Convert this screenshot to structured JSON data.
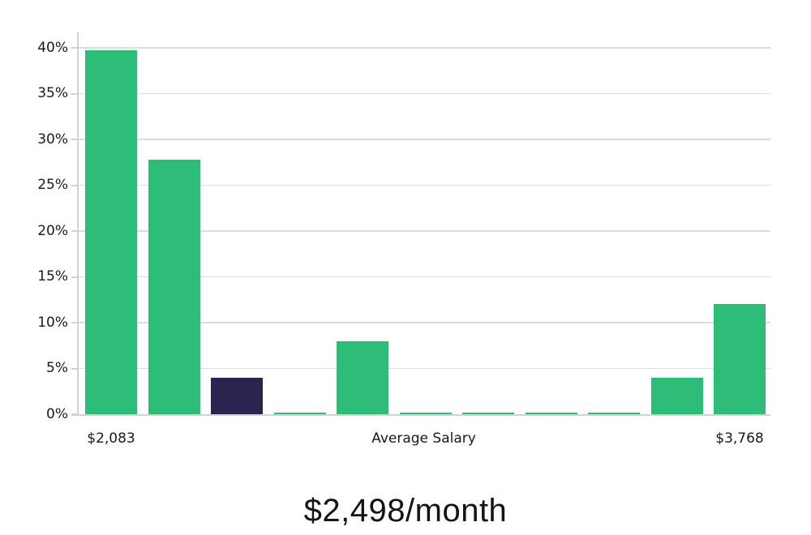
{
  "title": "$2,498/month",
  "chart_data": {
    "type": "bar",
    "title": "$2,498/month",
    "xlabel": "",
    "ylabel": "",
    "ylim": [
      0,
      41.7
    ],
    "grid": true,
    "legend": "none",
    "values": [
      39.7,
      27.8,
      4,
      0.2,
      8,
      0.2,
      0.2,
      0.2,
      0.2,
      4,
      12
    ],
    "highlight_index": 2,
    "y_ticks": [
      {
        "value": 40,
        "label": "40%"
      },
      {
        "value": 35,
        "label": "35%"
      },
      {
        "value": 30,
        "label": "30%"
      },
      {
        "value": 25,
        "label": "25%"
      },
      {
        "value": 20,
        "label": "20%"
      },
      {
        "value": 15,
        "label": "15%"
      },
      {
        "value": 10,
        "label": "10%"
      },
      {
        "value": 5,
        "label": "5%"
      },
      {
        "value": 0,
        "label": "0%"
      }
    ],
    "x_labels": [
      {
        "text": "$2,083",
        "anchor": "first-bar"
      },
      {
        "text": "Average Salary",
        "anchor": "center"
      },
      {
        "text": "$3,768",
        "anchor": "last-bar"
      }
    ],
    "colors": {
      "bar": "#2dbd78",
      "highlight_bar": "#2a2450",
      "gridline": "#dcdcdc",
      "axis": "#d2d2d2",
      "tick_text": "#1a1a1a",
      "title_text": "#141414",
      "background": "#ffffff"
    }
  }
}
